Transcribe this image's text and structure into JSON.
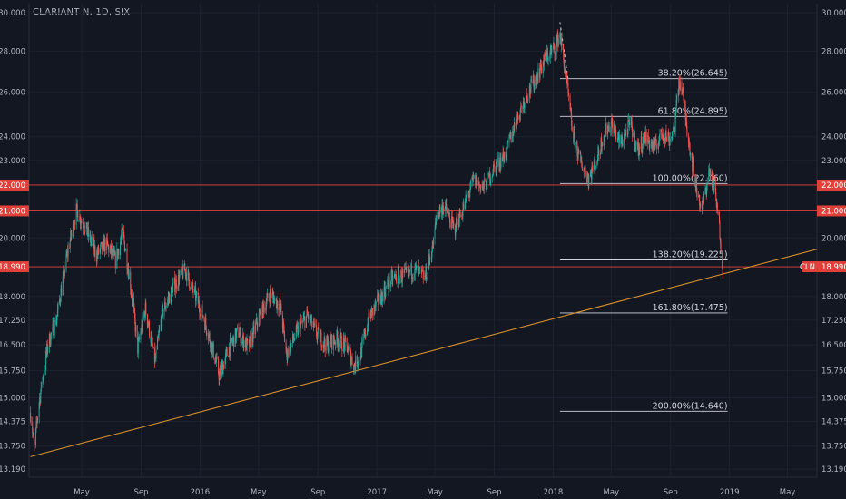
{
  "header": {
    "title": "CLARIANT N, 1D, SIX"
  },
  "colors": {
    "background": "#131722",
    "grid": "#1e2230",
    "up": "#26a69a",
    "down": "#ef5350",
    "red_line": "#e0403a",
    "white_line": "#d1d4dc",
    "trendline": "#d5902a",
    "axis_text": "#b2b5be"
  },
  "chart_data": {
    "type": "candlestick",
    "symbol": "CLN",
    "y_ticks": [
      "30.000",
      "28.000",
      "26.000",
      "24.000",
      "23.000",
      "22.000",
      "21.000",
      "20.000",
      "18.990",
      "18.000",
      "17.250",
      "16.500",
      "15.750",
      "15.000",
      "14.375",
      "13.750",
      "13.190"
    ],
    "y_tick_values": [
      30,
      28,
      26,
      24,
      23,
      22,
      21,
      20,
      18.99,
      18,
      17.25,
      16.5,
      15.75,
      15,
      14.375,
      13.75,
      13.19
    ],
    "x_ticks": [
      {
        "label": "May",
        "date": "2015-05-01"
      },
      {
        "label": "Sep",
        "date": "2015-09-01"
      },
      {
        "label": "2016",
        "date": "2016-01-01"
      },
      {
        "label": "May",
        "date": "2016-05-01"
      },
      {
        "label": "Sep",
        "date": "2016-09-01"
      },
      {
        "label": "2017",
        "date": "2017-01-01"
      },
      {
        "label": "May",
        "date": "2017-05-01"
      },
      {
        "label": "Sep",
        "date": "2017-09-01"
      },
      {
        "label": "2018",
        "date": "2018-01-01"
      },
      {
        "label": "May",
        "date": "2018-05-01"
      },
      {
        "label": "Sep",
        "date": "2018-09-01"
      },
      {
        "label": "2019",
        "date": "2019-01-01"
      },
      {
        "label": "May",
        "date": "2019-05-01"
      }
    ],
    "y_range": [
      13.0,
      30.5
    ],
    "x_range": [
      "2015-01-12",
      "2019-07-01"
    ],
    "y_scale": "log",
    "price_path": [
      [
        "2015-01-15",
        14.6
      ],
      [
        "2015-01-23",
        13.7
      ],
      [
        "2015-02-01",
        14.8
      ],
      [
        "2015-02-20",
        16.5
      ],
      [
        "2015-03-10",
        17.3
      ],
      [
        "2015-04-01",
        19.4
      ],
      [
        "2015-04-20",
        21.0
      ],
      [
        "2015-05-10",
        20.3
      ],
      [
        "2015-06-01",
        19.4
      ],
      [
        "2015-06-20",
        19.8
      ],
      [
        "2015-07-10",
        19.2
      ],
      [
        "2015-07-25",
        20.2
      ],
      [
        "2015-08-10",
        18.4
      ],
      [
        "2015-08-25",
        16.4
      ],
      [
        "2015-09-10",
        17.6
      ],
      [
        "2015-09-30",
        16.0
      ],
      [
        "2015-10-15",
        17.5
      ],
      [
        "2015-11-10",
        18.4
      ],
      [
        "2015-12-01",
        18.9
      ],
      [
        "2015-12-15",
        18.3
      ],
      [
        "2016-01-05",
        17.5
      ],
      [
        "2016-01-25",
        16.5
      ],
      [
        "2016-02-10",
        15.6
      ],
      [
        "2016-03-01",
        16.4
      ],
      [
        "2016-03-20",
        16.9
      ],
      [
        "2016-04-10",
        16.4
      ],
      [
        "2016-05-01",
        17.3
      ],
      [
        "2016-05-25",
        18.1
      ],
      [
        "2016-06-15",
        17.7
      ],
      [
        "2016-06-28",
        16.2
      ],
      [
        "2016-07-20",
        16.9
      ],
      [
        "2016-08-10",
        17.4
      ],
      [
        "2016-08-30",
        16.8
      ],
      [
        "2016-09-20",
        16.5
      ],
      [
        "2016-10-10",
        16.7
      ],
      [
        "2016-11-01",
        16.4
      ],
      [
        "2016-11-15",
        15.9
      ],
      [
        "2016-11-28",
        16.2
      ],
      [
        "2016-12-15",
        17.3
      ],
      [
        "2017-01-10",
        18.0
      ],
      [
        "2017-02-01",
        18.6
      ],
      [
        "2017-03-01",
        18.7
      ],
      [
        "2017-03-20",
        18.9
      ],
      [
        "2017-04-10",
        18.6
      ],
      [
        "2017-04-28",
        19.8
      ],
      [
        "2017-05-05",
        20.9
      ],
      [
        "2017-05-20",
        21.2
      ],
      [
        "2017-06-10",
        20.3
      ],
      [
        "2017-07-01",
        21.2
      ],
      [
        "2017-07-20",
        22.2
      ],
      [
        "2017-08-10",
        21.9
      ],
      [
        "2017-09-01",
        22.7
      ],
      [
        "2017-09-25",
        23.3
      ],
      [
        "2017-10-15",
        24.6
      ],
      [
        "2017-11-05",
        25.8
      ],
      [
        "2017-11-25",
        26.6
      ],
      [
        "2017-12-15",
        27.6
      ],
      [
        "2018-01-05",
        28.2
      ],
      [
        "2018-01-15",
        28.9
      ],
      [
        "2018-01-20",
        28.0
      ],
      [
        "2018-01-30",
        26.2
      ],
      [
        "2018-02-10",
        24.2
      ],
      [
        "2018-02-25",
        23.0
      ],
      [
        "2018-03-15",
        22.3
      ],
      [
        "2018-04-01",
        23.0
      ],
      [
        "2018-04-15",
        24.1
      ],
      [
        "2018-05-01",
        24.6
      ],
      [
        "2018-05-20",
        23.7
      ],
      [
        "2018-06-10",
        24.6
      ],
      [
        "2018-06-25",
        23.4
      ],
      [
        "2018-07-10",
        24.0
      ],
      [
        "2018-07-30",
        23.5
      ],
      [
        "2018-08-15",
        24.2
      ],
      [
        "2018-08-30",
        23.9
      ],
      [
        "2018-09-10",
        24.5
      ],
      [
        "2018-09-18",
        26.6
      ],
      [
        "2018-09-25",
        26.1
      ],
      [
        "2018-10-05",
        24.4
      ],
      [
        "2018-10-20",
        22.3
      ],
      [
        "2018-11-05",
        21.0
      ],
      [
        "2018-11-20",
        22.6
      ],
      [
        "2018-11-30",
        21.9
      ],
      [
        "2018-12-10",
        20.6
      ],
      [
        "2018-12-18",
        18.99
      ]
    ],
    "horizontal_lines": [
      {
        "value": 22.0,
        "color": "red",
        "label": "22.000"
      },
      {
        "value": 21.0,
        "color": "red",
        "label": "21.000"
      },
      {
        "value": 18.99,
        "color": "red",
        "label": "18.990"
      }
    ],
    "last_price_tag": {
      "symbol": "CLN",
      "value": "18.990"
    },
    "fibonacci": {
      "start_date": "2018-01-15",
      "end_date": "2018-12-28",
      "swing_high": {
        "date": "2018-01-15",
        "value": 29.5
      },
      "swing_low": {
        "date": "2018-02-01",
        "value": 26.6
      },
      "levels": [
        {
          "label": "38.20%(26.645)",
          "value": 26.645
        },
        {
          "label": "61.80%(24.895)",
          "value": 24.895
        },
        {
          "label": "100.00%(22.060)",
          "value": 22.06
        },
        {
          "label": "138.20%(19.225)",
          "value": 19.225
        },
        {
          "label": "161.80%(17.475)",
          "value": 17.475
        },
        {
          "label": "200.00%(14.640)",
          "value": 14.64
        }
      ]
    },
    "trendline": {
      "start": {
        "date": "2015-01-15",
        "value": 13.49
      },
      "end": {
        "date": "2019-07-01",
        "value": 19.6
      }
    }
  }
}
